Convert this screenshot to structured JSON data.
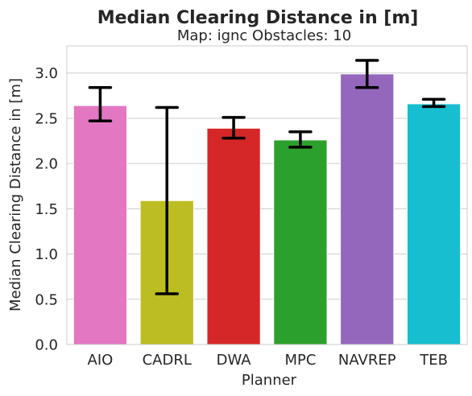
{
  "chart_data": {
    "type": "bar",
    "title": "Median Clearing Distance in [m]",
    "subtitle": "Map: ignc Obstacles: 10",
    "xlabel": "Planner",
    "ylabel": "Median Clearing Distance in [m]",
    "ylim": [
      0,
      3.3
    ],
    "yticks": [
      "0.0",
      "0.5",
      "1.0",
      "1.5",
      "2.0",
      "2.5",
      "3.0"
    ],
    "grid": "horizontal",
    "categories": [
      "AIO",
      "CADRL",
      "DWA",
      "MPC",
      "NAVREP",
      "TEB"
    ],
    "values": [
      2.64,
      1.59,
      2.39,
      2.26,
      2.99,
      2.66
    ],
    "error_low": [
      2.47,
      0.56,
      2.28,
      2.18,
      2.84,
      2.63
    ],
    "error_high": [
      2.84,
      2.62,
      2.51,
      2.35,
      3.14,
      2.71
    ],
    "colors": [
      "#e377c2",
      "#bcbd22",
      "#d62728",
      "#2ca02c",
      "#9467bd",
      "#17becf"
    ],
    "error_color": "#000000",
    "grid_color": "#cccccc"
  }
}
